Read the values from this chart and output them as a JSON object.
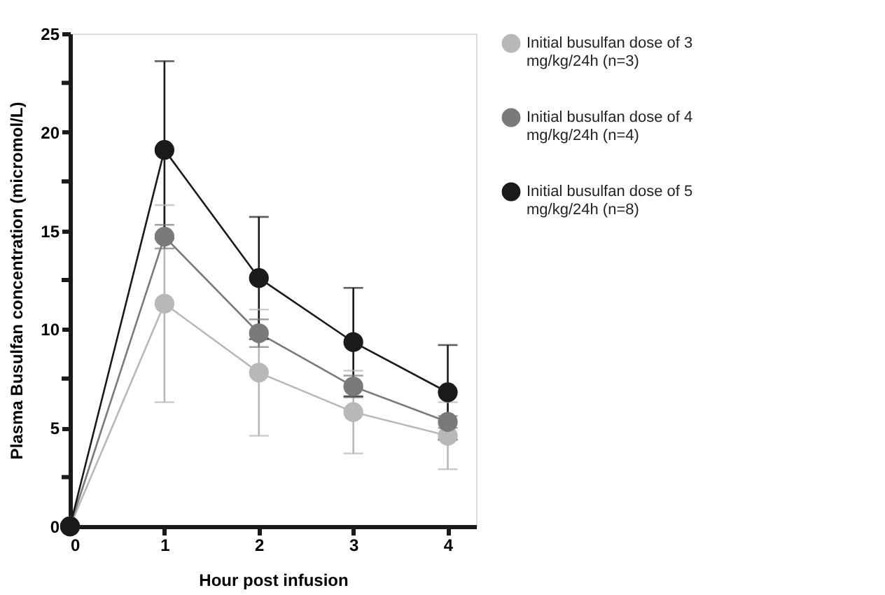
{
  "chart_data": {
    "type": "line",
    "xlabel": "Hour post infusion",
    "ylabel": "Plasma Busulfan concentration (micromol/L)",
    "x": [
      0,
      1,
      2,
      3,
      4
    ],
    "xlim": [
      0,
      4.3
    ],
    "xticks": [
      0,
      1,
      2,
      3,
      4
    ],
    "ylim": [
      0,
      25
    ],
    "yticks": [
      0,
      {
        "value": 2.5,
        "label": null
      },
      5,
      {
        "value": 7.5,
        "label": null
      },
      10,
      {
        "value": 12.5,
        "label": null
      },
      15,
      {
        "value": 17.5,
        "label": null
      },
      20,
      {
        "value": 22.5,
        "label": null
      },
      25
    ],
    "marker": "circle",
    "line_style": "solid",
    "grid": false,
    "legend": "top right",
    "series": [
      {
        "name": "Initial busulfan dose of 3 mg/kg/24h (n=3)",
        "color": "#b8b8b8",
        "values": [
          0,
          11.3,
          7.8,
          5.8,
          4.6
        ],
        "errors": [
          null,
          5.0,
          3.2,
          2.1,
          1.7
        ]
      },
      {
        "name": "Initial busulfan dose of 4 mg/kg/24h (n=4)",
        "color": "#7a7a7a",
        "values": [
          0,
          14.7,
          9.8,
          7.1,
          5.3
        ],
        "errors": [
          null,
          0.6,
          0.7,
          0.55,
          0.3
        ]
      },
      {
        "name": "Initial busulfan dose of 5 mg/kg/24h (n=8)",
        "color": "#1a1a1a",
        "values": [
          0,
          19.1,
          12.6,
          9.35,
          6.8
        ],
        "errors": [
          null,
          4.5,
          3.1,
          2.75,
          2.4
        ]
      }
    ]
  }
}
